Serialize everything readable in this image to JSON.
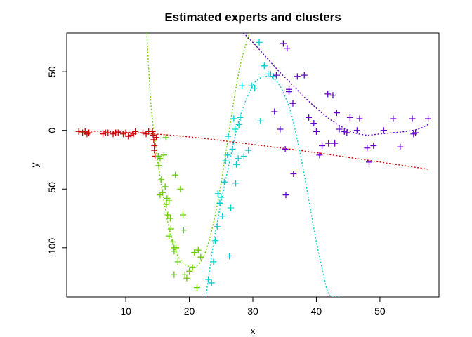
{
  "chart_data": {
    "type": "scatter",
    "title": "Estimated experts and clusters",
    "xlabel": "x",
    "ylabel": "y",
    "xlim": [
      0.7,
      59.3
    ],
    "ylim": [
      -142,
      83
    ],
    "xticks": [
      10,
      20,
      30,
      40,
      50
    ],
    "yticks": [
      -100,
      -50,
      0,
      50
    ],
    "grid": false,
    "legend": "none",
    "series": [
      {
        "color": "#cc0000",
        "marker": "+",
        "points": [
          [
            2.6,
            -1
          ],
          [
            3.2,
            -2
          ],
          [
            3.6,
            -1
          ],
          [
            3.9,
            -3
          ],
          [
            4.2,
            -2
          ],
          [
            6.4,
            -3
          ],
          [
            6.8,
            -2
          ],
          [
            7.2,
            -2
          ],
          [
            8.0,
            -3
          ],
          [
            8.4,
            -2
          ],
          [
            8.8,
            -2
          ],
          [
            9.6,
            -3
          ],
          [
            10.0,
            -2
          ],
          [
            10.4,
            -5
          ],
          [
            10.8,
            -4
          ],
          [
            11.2,
            -3
          ],
          [
            11.5,
            -1
          ],
          [
            12.7,
            -2
          ],
          [
            13.2,
            -3
          ],
          [
            13.6,
            -1
          ],
          [
            14.2,
            -1
          ],
          [
            14.3,
            -4
          ],
          [
            14.4,
            -8
          ],
          [
            14.5,
            -13
          ],
          [
            14.5,
            -17
          ],
          [
            14.6,
            -22
          ],
          [
            14.8,
            -6
          ]
        ],
        "curve": [
          [
            2.5,
            -0.5
          ],
          [
            10,
            -1.5
          ],
          [
            20,
            -5.5
          ],
          [
            30,
            -12
          ],
          [
            40,
            -19
          ],
          [
            50,
            -27
          ],
          [
            57.5,
            -33
          ]
        ]
      },
      {
        "color": "#66cc00",
        "marker": "+",
        "points": [
          [
            15.1,
            -22
          ],
          [
            15.4,
            -24
          ],
          [
            15.2,
            -30
          ],
          [
            15.6,
            -42
          ],
          [
            16.0,
            -21
          ],
          [
            15.4,
            -55
          ],
          [
            15.8,
            -53
          ],
          [
            16.2,
            -48
          ],
          [
            16.4,
            -63
          ],
          [
            16.5,
            -58
          ],
          [
            16.8,
            -60
          ],
          [
            16.6,
            -72
          ],
          [
            17.0,
            -75
          ],
          [
            17.1,
            -84
          ],
          [
            16.8,
            -90
          ],
          [
            17.4,
            -95
          ],
          [
            17.6,
            -100
          ],
          [
            17.6,
            -103
          ],
          [
            17.9,
            -100
          ],
          [
            17.6,
            -123
          ],
          [
            18.2,
            -112
          ],
          [
            18.6,
            -50
          ],
          [
            17.8,
            -38
          ],
          [
            19.0,
            -72
          ],
          [
            19.1,
            -85
          ],
          [
            19.3,
            -123
          ],
          [
            19.6,
            -126
          ],
          [
            20.0,
            -120
          ],
          [
            20.5,
            -117
          ],
          [
            20.8,
            -104
          ],
          [
            21.2,
            -134
          ],
          [
            21.4,
            -102
          ],
          [
            21.8,
            -108
          ],
          [
            16.3,
            -6
          ]
        ],
        "curve": [
          [
            13.3,
            83
          ],
          [
            14,
            20
          ],
          [
            15,
            -25
          ],
          [
            16,
            -60
          ],
          [
            17,
            -88
          ],
          [
            18,
            -105
          ],
          [
            19,
            -113
          ],
          [
            20,
            -116
          ],
          [
            21,
            -116
          ],
          [
            22,
            -110
          ],
          [
            23,
            -96
          ],
          [
            24,
            -74
          ],
          [
            25,
            -45
          ],
          [
            26,
            -10
          ],
          [
            27,
            25
          ],
          [
            28,
            55
          ],
          [
            29,
            75
          ],
          [
            29.5,
            83
          ]
        ]
      },
      {
        "color": "#00cccc",
        "marker": "+",
        "points": [
          [
            23.0,
            -127
          ],
          [
            23.5,
            -130
          ],
          [
            23.8,
            -112
          ],
          [
            24.1,
            -94
          ],
          [
            24.4,
            -82
          ],
          [
            24.5,
            -54
          ],
          [
            24.8,
            -62
          ],
          [
            25.0,
            -57
          ],
          [
            25.2,
            -73
          ],
          [
            25.5,
            -44
          ],
          [
            25.7,
            -26
          ],
          [
            26.0,
            -21
          ],
          [
            26.1,
            -5
          ],
          [
            26.3,
            -107
          ],
          [
            26.5,
            -66
          ],
          [
            26.8,
            -16
          ],
          [
            27.0,
            10
          ],
          [
            27.2,
            1
          ],
          [
            27.3,
            -45
          ],
          [
            27.4,
            -29
          ],
          [
            27.7,
            -24
          ],
          [
            27.8,
            5
          ],
          [
            28.0,
            11
          ],
          [
            28.3,
            38
          ],
          [
            28.6,
            -22
          ],
          [
            29.3,
            -17
          ],
          [
            29.8,
            38
          ],
          [
            30.3,
            36
          ],
          [
            31.0,
            75
          ],
          [
            31.2,
            8
          ],
          [
            31.8,
            55
          ],
          [
            32.4,
            48
          ],
          [
            32.8,
            48
          ],
          [
            33.2,
            46
          ]
        ],
        "curve": [
          [
            22.6,
            -142
          ],
          [
            24,
            -90
          ],
          [
            26,
            -35
          ],
          [
            28,
            12
          ],
          [
            30,
            38
          ],
          [
            31,
            44
          ],
          [
            32,
            46
          ],
          [
            33,
            45
          ],
          [
            34,
            40
          ],
          [
            35,
            30
          ],
          [
            36,
            15
          ],
          [
            37,
            -8
          ],
          [
            38,
            -35
          ],
          [
            39,
            -65
          ],
          [
            40,
            -95
          ],
          [
            41,
            -120
          ],
          [
            42,
            -140
          ],
          [
            43.8,
            -142
          ]
        ]
      },
      {
        "color": "#6600cc",
        "marker": "+",
        "points": [
          [
            33.4,
            16
          ],
          [
            33.7,
            47
          ],
          [
            34.3,
            1
          ],
          [
            34.8,
            74
          ],
          [
            35.1,
            -16
          ],
          [
            35.2,
            -55
          ],
          [
            35.4,
            70
          ],
          [
            35.7,
            35
          ],
          [
            35.7,
            33
          ],
          [
            36.3,
            23
          ],
          [
            36.4,
            -37
          ],
          [
            37.0,
            46
          ],
          [
            38.1,
            47
          ],
          [
            38.8,
            11
          ],
          [
            39.6,
            6
          ],
          [
            40.0,
            -1
          ],
          [
            40.5,
            -21
          ],
          [
            40.9,
            -13
          ],
          [
            41.8,
            31
          ],
          [
            41.9,
            -11
          ],
          [
            42.6,
            30
          ],
          [
            42.9,
            -11
          ],
          [
            43.2,
            15
          ],
          [
            43.6,
            1
          ],
          [
            44.4,
            -1
          ],
          [
            44.8,
            -2
          ],
          [
            45.3,
            11
          ],
          [
            46.4,
            0
          ],
          [
            46.8,
            10
          ],
          [
            48.0,
            -15
          ],
          [
            48.3,
            -27
          ],
          [
            49.0,
            -13
          ],
          [
            50.6,
            0
          ],
          [
            52.1,
            10
          ],
          [
            53.2,
            -14
          ],
          [
            55.1,
            10
          ],
          [
            55.3,
            -3
          ],
          [
            55.6,
            -2
          ],
          [
            57.6,
            10
          ]
        ],
        "curve": [
          [
            28.5,
            83
          ],
          [
            30,
            75
          ],
          [
            32,
            63
          ],
          [
            34,
            51
          ],
          [
            36,
            40
          ],
          [
            38,
            29
          ],
          [
            40,
            19
          ],
          [
            42,
            10
          ],
          [
            44,
            3
          ],
          [
            46,
            -2
          ],
          [
            48,
            -4
          ],
          [
            50,
            -3
          ],
          [
            52,
            -2
          ],
          [
            54,
            -1
          ],
          [
            56,
            1
          ],
          [
            57.6,
            5
          ]
        ]
      }
    ]
  }
}
